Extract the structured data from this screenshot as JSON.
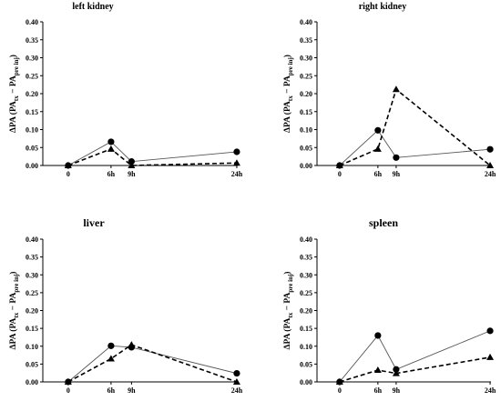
{
  "chart_data": [
    {
      "type": "line",
      "title": "left kidney",
      "ylabel": {
        "main": "ΔPA (PA",
        "sub1": "tx",
        "mid": " − PA",
        "sub2": "pre inj",
        "end": ")"
      },
      "x_values": [
        0,
        6,
        9,
        24
      ],
      "x_tick_labels": [
        "0",
        "6h",
        "9h",
        "24h"
      ],
      "y_ticks": [
        "0.00",
        "0.05",
        "0.10",
        "0.15",
        "0.20",
        "0.25",
        "0.30",
        "0.35",
        "0.40"
      ],
      "ylim": [
        0,
        0.4
      ],
      "series": [
        {
          "marker": "circle",
          "line_style": "solid",
          "values": [
            0.0,
            0.066,
            0.011,
            0.038
          ]
        },
        {
          "marker": "triangle",
          "line_style": "dashed",
          "values": [
            0.0,
            0.046,
            0.0,
            0.007
          ]
        }
      ]
    },
    {
      "type": "line",
      "title": "right kidney",
      "ylabel": {
        "main": "ΔPA (PA",
        "sub1": "tx",
        "mid": " − PA",
        "sub2": "pre inj",
        "end": ")"
      },
      "x_values": [
        0,
        6,
        9,
        24
      ],
      "x_tick_labels": [
        "0",
        "6h",
        "9h",
        "24h"
      ],
      "y_ticks": [
        "0.00",
        "0.05",
        "0.10",
        "0.15",
        "0.20",
        "0.25",
        "0.30",
        "0.35",
        "0.40"
      ],
      "ylim": [
        0,
        0.4
      ],
      "series": [
        {
          "marker": "circle",
          "line_style": "solid",
          "values": [
            0.0,
            0.098,
            0.022,
            0.045
          ]
        },
        {
          "marker": "triangle",
          "line_style": "dashed",
          "values": [
            0.0,
            0.046,
            0.212,
            0.0
          ]
        }
      ]
    },
    {
      "type": "line",
      "title": "liver",
      "ylabel": {
        "main": "ΔPA (PA",
        "sub1": "tx",
        "mid": " − PA",
        "sub2": "pre inj",
        "end": ")"
      },
      "x_values": [
        0,
        6,
        9,
        24
      ],
      "x_tick_labels": [
        "0",
        "6h",
        "9h",
        "24h"
      ],
      "y_ticks": [
        "0.00",
        "0.05",
        "0.10",
        "0.15",
        "0.20",
        "0.25",
        "0.30",
        "0.35",
        "0.40"
      ],
      "ylim": [
        0,
        0.4
      ],
      "series": [
        {
          "marker": "circle",
          "line_style": "solid",
          "values": [
            0.0,
            0.101,
            0.097,
            0.024
          ]
        },
        {
          "marker": "triangle",
          "line_style": "dashed",
          "values": [
            0.0,
            0.065,
            0.104,
            0.0
          ]
        }
      ]
    },
    {
      "type": "line",
      "title": "spleen",
      "ylabel": {
        "main": "ΔPA (PA",
        "sub1": "tx",
        "mid": " − PA",
        "sub2": "pre inj",
        "end": ")"
      },
      "x_values": [
        0,
        6,
        9,
        24
      ],
      "x_tick_labels": [
        "0",
        "6h",
        "9h",
        "24h"
      ],
      "y_ticks": [
        "0.00",
        "0.05",
        "0.10",
        "0.15",
        "0.20",
        "0.25",
        "0.30",
        "0.35",
        "0.40"
      ],
      "ylim": [
        0,
        0.4
      ],
      "series": [
        {
          "marker": "circle",
          "line_style": "solid",
          "values": [
            0.0,
            0.13,
            0.035,
            0.143
          ]
        },
        {
          "marker": "triangle",
          "line_style": "dashed",
          "values": [
            0.0,
            0.033,
            0.024,
            0.069
          ]
        }
      ]
    }
  ]
}
